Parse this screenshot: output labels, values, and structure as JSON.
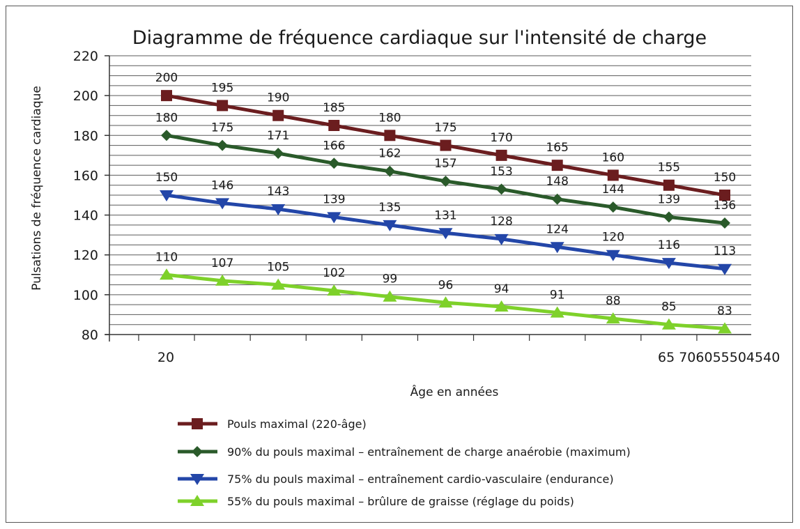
{
  "chart_data": {
    "type": "line",
    "title": "Diagramme de fréquence cardiaque sur l'intensité de charge",
    "xlabel": "Âge en années",
    "ylabel": "Pulsations de fréquence cardiaque",
    "ylim": [
      80,
      220
    ],
    "yticks": [
      80,
      100,
      120,
      140,
      160,
      180,
      200,
      220
    ],
    "minor_grid_step": 5,
    "grid": true,
    "legend_position": "bottom",
    "x_tick_labels": [
      "20",
      "65 706055504540"
    ],
    "series": [
      {
        "name": "Pouls maximal (220-âge)",
        "color": "#6b1d1f",
        "marker": "square",
        "values": [
          200,
          195,
          190,
          185,
          180,
          175,
          170,
          165,
          160,
          155,
          150
        ]
      },
      {
        "name": "90% du pouls maximal – entraînement de charge anaérobie (maximum)",
        "color": "#2a5a2a",
        "marker": "diamond",
        "values": [
          180,
          175,
          171,
          166,
          162,
          157,
          153,
          148,
          144,
          139,
          136
        ]
      },
      {
        "name": "75% du pouls maximal – entraînement cardio-vasculaire (endurance)",
        "color": "#2346a8",
        "marker": "triangle-down",
        "values": [
          150,
          146,
          143,
          139,
          135,
          131,
          128,
          124,
          120,
          116,
          113
        ]
      },
      {
        "name": "55% du pouls maximal – brûlure de graisse (réglage du poids)",
        "color": "#7ed12a",
        "marker": "triangle-up",
        "values": [
          110,
          107,
          105,
          102,
          99,
          96,
          94,
          91,
          88,
          85,
          83
        ]
      }
    ]
  }
}
